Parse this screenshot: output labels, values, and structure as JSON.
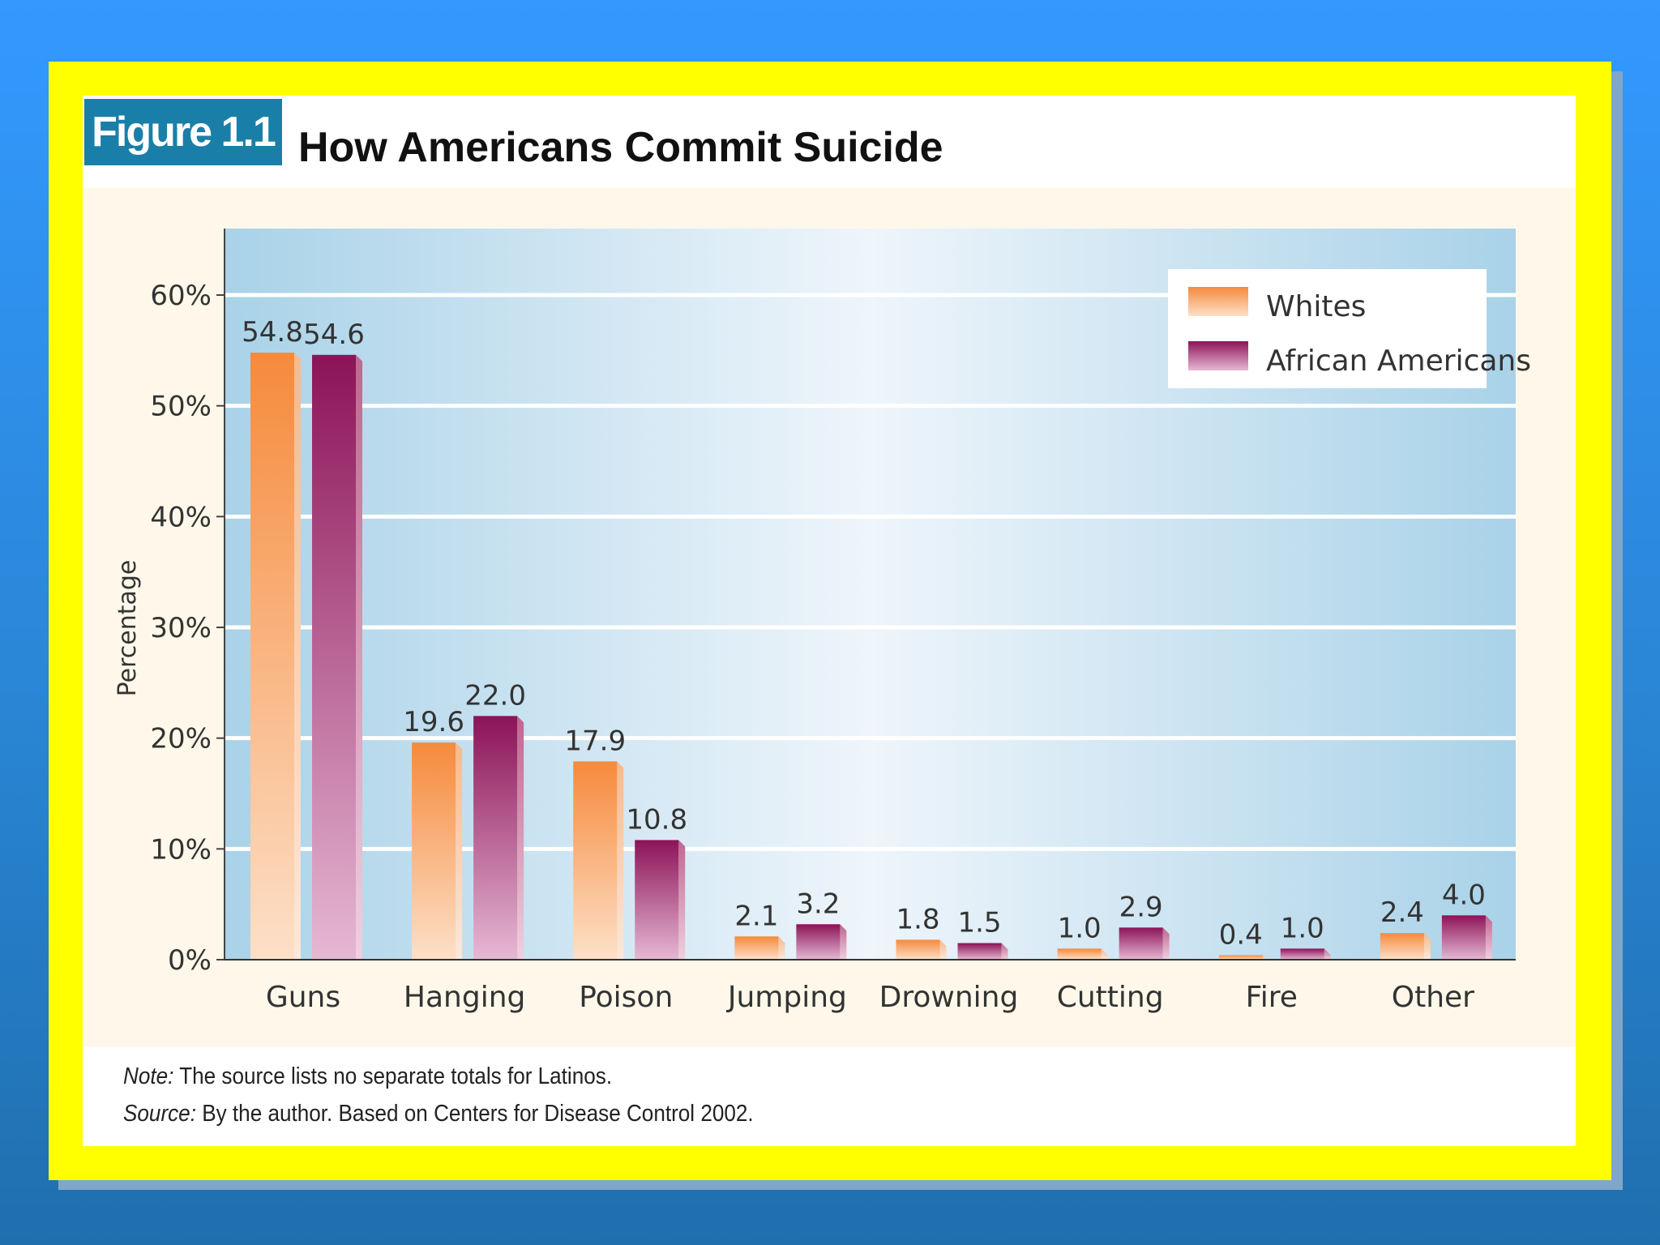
{
  "figure": {
    "tag": "Figure 1.1",
    "title": "How Americans Commit Suicide"
  },
  "note": {
    "note_label": "Note:",
    "note_text": "The source lists no separate totals for Latinos.",
    "source_label": "Source:",
    "source_text": "By the author. Based on Centers for Disease Control 2002."
  },
  "colors": {
    "whites": "#f5904a",
    "african_americans": "#941a62",
    "plot_background": "#b4d8ec",
    "frame": "#ffff00"
  },
  "chart_data": {
    "type": "bar",
    "title": "How Americans Commit Suicide",
    "xlabel": "",
    "ylabel": "Percentage",
    "ylim": [
      0,
      66
    ],
    "yticks": [
      0,
      10,
      20,
      30,
      40,
      50,
      60
    ],
    "ytick_labels": [
      "0%",
      "10%",
      "20%",
      "30%",
      "40%",
      "50%",
      "60%"
    ],
    "grid": true,
    "legend_position": "top-right",
    "categories": [
      "Guns",
      "Hanging",
      "Poison",
      "Jumping",
      "Drowning",
      "Cutting",
      "Fire",
      "Other"
    ],
    "series": [
      {
        "name": "Whites",
        "values": [
          54.8,
          19.6,
          17.9,
          2.1,
          1.8,
          1.0,
          0.4,
          2.4
        ],
        "labels": [
          "54.8",
          "19.6",
          "17.9",
          "2.1",
          "1.8",
          "1.0",
          "0.4",
          "2.4"
        ]
      },
      {
        "name": "African Americans",
        "values": [
          54.6,
          22.0,
          10.8,
          3.2,
          1.5,
          2.9,
          1.0,
          4.0
        ],
        "labels": [
          "54.6",
          "22.0",
          "10.8",
          "3.2",
          "1.5",
          "2.9",
          "1.0",
          "4.0"
        ]
      }
    ]
  }
}
